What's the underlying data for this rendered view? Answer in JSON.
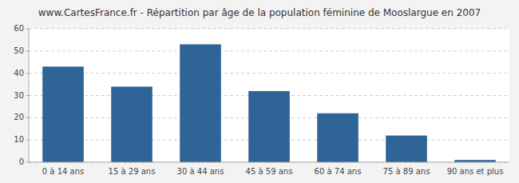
{
  "chart_data": {
    "type": "bar",
    "title": "www.CartesFrance.fr - Répartition par âge de la population féminine de Mooslargue en 2007",
    "categories": [
      "0 à 14 ans",
      "15 à 29 ans",
      "30 à 44 ans",
      "45 à 59 ans",
      "60 à 74 ans",
      "75 à 89 ans",
      "90 ans et plus"
    ],
    "values": [
      43,
      34,
      53,
      32,
      22,
      12,
      1
    ],
    "color": "#2e6496",
    "ylim": [
      0,
      60
    ],
    "yticks": [
      0,
      10,
      20,
      30,
      40,
      50,
      60
    ],
    "grid": true
  }
}
